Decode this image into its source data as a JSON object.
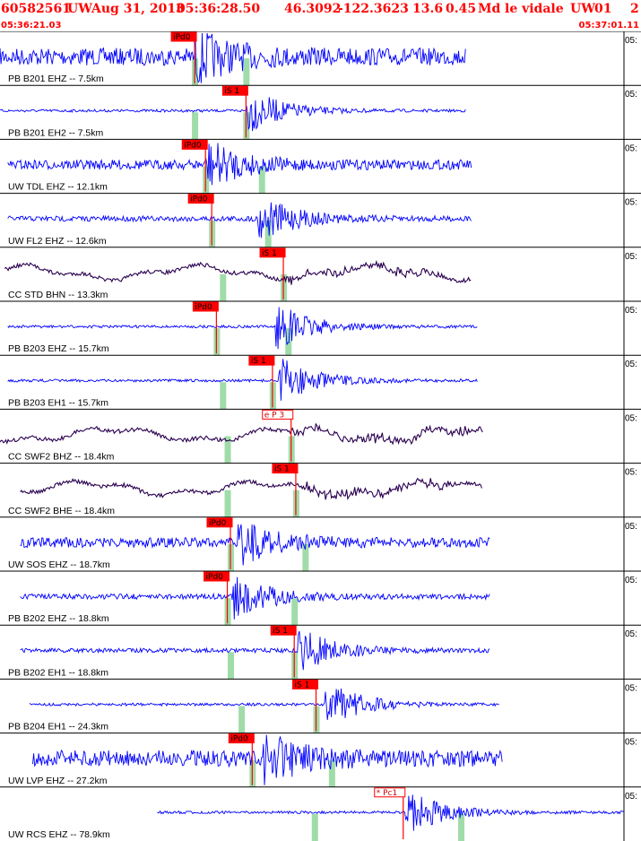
{
  "header": {
    "event_id": "60582561",
    "network": "UW",
    "date": "Aug 31, 2013",
    "time": "05:36:28.50",
    "lat": "46.3092",
    "lon": "-122.3623",
    "depth": "13.6",
    "magnitude": "0.45",
    "mag_type": "Md",
    "location": "le vidale",
    "source": "UW",
    "version": "01",
    "extra": "2",
    "start_time": "05:36:21.03",
    "end_time": "05:37:01.11"
  },
  "right_edge_label": "05:",
  "colors": {
    "trace_blue": "#0000ff",
    "trace_dark": "#2a0050",
    "pick": "#ff0000",
    "window": "#8fd69a",
    "header": "#ff0000"
  },
  "chart_data": {
    "type": "line",
    "title": "60582561 UW Aug 31, 2013 05:36:28.50 46.3092 -122.3623 13.6 0.45 Md le vidale UW 01 2",
    "x_start": "05:36:21.03",
    "x_end": "05:37:01.11",
    "x_range_seconds": [
      0,
      40.08
    ],
    "channels": [
      {
        "label": "PB B201 EHZ -- 7.5km",
        "color": "blue",
        "data_start": 0.0,
        "data_end": 29.9,
        "amp": 0.32,
        "pick_labels": [
          "iPd0"
        ],
        "picks_s": [
          12.5
        ],
        "s_time": 15.8,
        "windows_s": [
          12.5,
          15.8
        ],
        "burst": 12.5
      },
      {
        "label": "PB B201 EH2 -- 7.5km",
        "color": "blue",
        "data_start": 0.0,
        "data_end": 29.9,
        "amp": 0.05,
        "pick_labels": [
          "iS 1"
        ],
        "picks_s": [
          15.8
        ],
        "s_time": 15.8,
        "windows_s": [
          12.5,
          15.8
        ],
        "burst": 15.8
      },
      {
        "label": "UW TDL EHZ -- 12.1km",
        "color": "blue",
        "data_start": 0.5,
        "data_end": 30.3,
        "amp": 0.18,
        "pick_labels": [
          "iPd0"
        ],
        "picks_s": [
          13.2
        ],
        "s_time": 17.5,
        "windows_s": [
          13.2,
          16.8
        ],
        "burst": 13.2
      },
      {
        "label": "UW FL2 EHZ -- 12.6km",
        "color": "blue",
        "data_start": 0.5,
        "data_end": 30.3,
        "amp": 0.1,
        "pick_labels": [
          "iPd0"
        ],
        "picks_s": [
          13.6
        ],
        "s_time": 18.0,
        "windows_s": [
          13.6,
          17.2
        ],
        "burst": 16.5
      },
      {
        "label": "CC STD BHN -- 13.3km",
        "color": "dark",
        "data_start": 0.3,
        "data_end": 30.3,
        "amp": 0.3,
        "pick_labels": [
          "iS 1"
        ],
        "picks_s": [
          18.2
        ],
        "s_time": 18.2,
        "windows_s": [
          14.3,
          18.2
        ],
        "burst": -1
      },
      {
        "label": "PB B203 EHZ -- 15.7km",
        "color": "blue",
        "data_start": 0.5,
        "data_end": 30.7,
        "amp": 0.05,
        "pick_labels": [
          "iPd0"
        ],
        "picks_s": [
          13.9
        ],
        "s_time": 18.5,
        "windows_s": [
          13.9,
          18.5
        ],
        "burst": 17.7
      },
      {
        "label": "PB B203 EH1 -- 15.7km",
        "color": "blue",
        "data_start": 0.5,
        "data_end": 30.7,
        "amp": 0.05,
        "pick_labels": [
          "iS 1"
        ],
        "picks_s": [
          17.5
        ],
        "s_time": 17.5,
        "windows_s": [
          14.3,
          17.5
        ],
        "burst": 17.9
      },
      {
        "label": "CC SWF2 BHZ -- 18.4km",
        "color": "dark",
        "data_start": 0.0,
        "data_end": 31.0,
        "amp": 0.3,
        "pick_labels": [
          "e P 3"
        ],
        "picks_s": [
          18.7
        ],
        "s_time": 22.3,
        "windows_s": [
          14.6,
          18.7
        ],
        "burst": -1
      },
      {
        "label": "CC SWF2 BHE -- 18.4km",
        "color": "dark",
        "data_start": 1.3,
        "data_end": 31.0,
        "amp": 0.3,
        "pick_labels": [
          "iS 1"
        ],
        "picks_s": [
          19.0
        ],
        "s_time": 19.0,
        "windows_s": [
          14.6,
          19.0
        ],
        "burst": -1
      },
      {
        "label": "UW SOS EHZ -- 18.7km",
        "color": "blue",
        "data_start": 1.3,
        "data_end": 31.5,
        "amp": 0.18,
        "pick_labels": [
          "iPd0"
        ],
        "picks_s": [
          14.8
        ],
        "s_time": 19.6,
        "windows_s": [
          14.8,
          19.6
        ],
        "burst": 15.2
      },
      {
        "label": "PB B202 EHZ -- 18.8km",
        "color": "blue",
        "data_start": 1.3,
        "data_end": 31.5,
        "amp": 0.1,
        "pick_labels": [
          "iPd0"
        ],
        "picks_s": [
          14.6
        ],
        "s_time": 18.9,
        "windows_s": [
          14.6,
          18.9
        ],
        "burst": 14.9
      },
      {
        "label": "PB B202 EH1 -- 18.8km",
        "color": "blue",
        "data_start": 1.3,
        "data_end": 31.5,
        "amp": 0.08,
        "pick_labels": [
          "iS 1"
        ],
        "picks_s": [
          18.9
        ],
        "s_time": 18.9,
        "windows_s": [
          14.8,
          18.9
        ],
        "burst": 19.1
      },
      {
        "label": "PB B204 EH1 -- 24.3km",
        "color": "blue",
        "data_start": 1.9,
        "data_end": 32.1,
        "amp": 0.05,
        "pick_labels": [
          "iS 1"
        ],
        "picks_s": [
          20.3
        ],
        "s_time": 20.3,
        "windows_s": [
          15.5,
          20.3
        ],
        "burst": 20.9
      },
      {
        "label": "UW LVP EHZ -- 27.2km",
        "color": "blue",
        "data_start": 2.1,
        "data_end": 32.3,
        "amp": 0.3,
        "pick_labels": [
          "iPd0"
        ],
        "picks_s": [
          16.2
        ],
        "s_time": 21.3,
        "windows_s": [
          16.2,
          21.3
        ],
        "burst": 16.9
      },
      {
        "label": "UW RCS EHZ -- 78.9km",
        "color": "blue",
        "data_start": 10.1,
        "data_end": 40.08,
        "amp": 0.05,
        "pick_labels": [
          "* Pc1"
        ],
        "picks_s": [
          25.9
        ],
        "s_time": 25.9,
        "windows_s": [
          20.2,
          29.6
        ],
        "burst": 26.0
      }
    ]
  }
}
